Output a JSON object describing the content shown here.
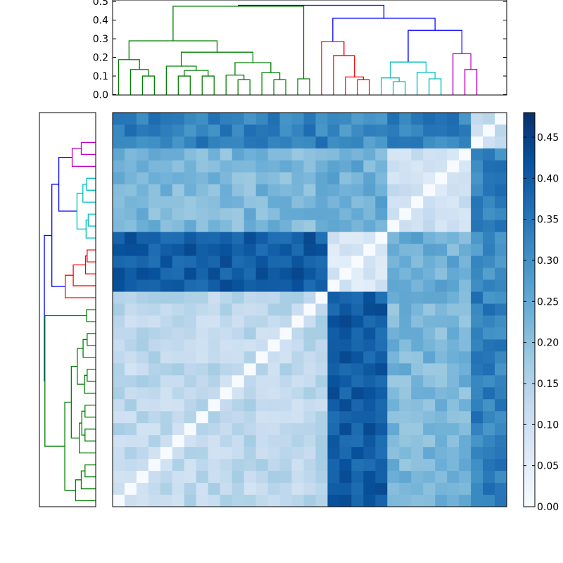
{
  "chart_data": [
    {
      "type": "dendrogram",
      "panel": "top",
      "ylim": [
        0,
        0.5
      ],
      "y_ticks": [
        0.0,
        0.1,
        0.2,
        0.3,
        0.4,
        0.5
      ],
      "y_tick_labels": [
        "0.0",
        "0.1",
        "0.2",
        "0.3",
        "0.4",
        "0.5"
      ],
      "leaf_count": 33,
      "cluster_colors": [
        "#008000",
        "#ff0000",
        "#00bfbf",
        "#bf00bf"
      ],
      "link_color_above_threshold": "#0000ff"
    },
    {
      "type": "dendrogram",
      "panel": "left",
      "leaf_count": 33,
      "cluster_colors": [
        "#bf00bf",
        "#00bfbf",
        "#ff0000",
        "#008000"
      ],
      "link_color_above_threshold": "#0000ff"
    },
    {
      "type": "heatmap",
      "rows": 33,
      "cols": 33,
      "colormap": "Blues",
      "vmin": 0.0,
      "vmax": 0.48,
      "colorbar_ticks": [
        0.0,
        0.05,
        0.1,
        0.15,
        0.2,
        0.25,
        0.3,
        0.35,
        0.4,
        0.45
      ],
      "colorbar_tick_labels": [
        "0.00",
        "0.05",
        "0.10",
        "0.15",
        "0.20",
        "0.25",
        "0.30",
        "0.35",
        "0.40",
        "0.45"
      ],
      "diagonal_value": 0.0
    }
  ]
}
